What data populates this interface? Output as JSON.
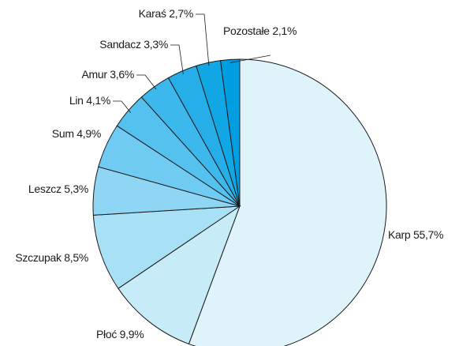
{
  "chart_data": {
    "type": "pie",
    "categories": [
      "Karp",
      "Płoć",
      "Szczupak",
      "Leszcz",
      "Sum",
      "Lin",
      "Amur",
      "Sandacz",
      "Karaś",
      "Pozostałe"
    ],
    "values": [
      55.7,
      9.9,
      8.5,
      5.3,
      4.9,
      4.1,
      3.6,
      3.3,
      2.7,
      2.1
    ],
    "value_labels": [
      "55,7%",
      "9,9%",
      "8,5%",
      "5,3%",
      "4,9%",
      "4,1%",
      "3,6%",
      "3,3%",
      "2,7%",
      "2,1%"
    ],
    "colors": [
      "#dff3fb",
      "#c8ebf8",
      "#a8e0f6",
      "#8fd6f4",
      "#6fcbf1",
      "#55c1ee",
      "#3db8ec",
      "#25aee8",
      "#11a6e4",
      "#009de0"
    ]
  }
}
